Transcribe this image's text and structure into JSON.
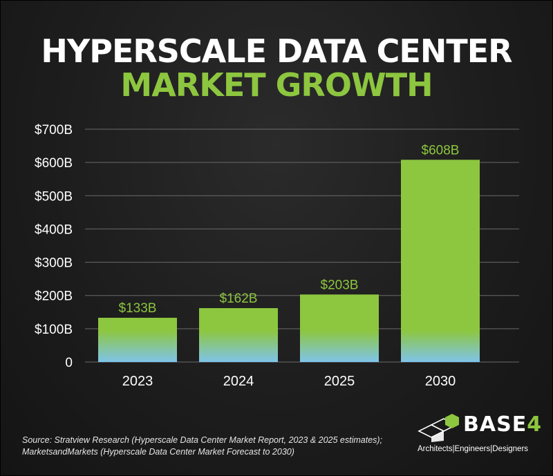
{
  "title": {
    "line1": "HYPERSCALE DATA CENTER",
    "line2": "MARKET GROWTH"
  },
  "colors": {
    "background": "#1d1d1d",
    "title_line1": "#ffffff",
    "title_line2": "#8dc63f",
    "bar": "#8dc63f",
    "bar_base": "#7fc4ea",
    "data_label": "#8dc63f",
    "grid": "#6a6a6a"
  },
  "chart_data": {
    "type": "bar",
    "categories": [
      "2023",
      "2024",
      "2025",
      "2030"
    ],
    "values": [
      133,
      162,
      203,
      608
    ],
    "data_labels": [
      "$133B",
      "$162B",
      "$203B",
      "$608B"
    ],
    "ylim": [
      0,
      700
    ],
    "yticks": [
      0,
      100,
      200,
      300,
      400,
      500,
      600,
      700
    ],
    "ytick_labels": [
      "0",
      "$100B",
      "$200B",
      "$300B",
      "$400B",
      "$500B",
      "$600B",
      "$700B"
    ],
    "grid": true,
    "xlabel": "",
    "ylabel": ""
  },
  "source": {
    "line1": "Source: Stratview Research (Hyperscale Data Center Market Report, 2023 & 2025 estimates);",
    "line2": "MarketsandMarkets (Hyperscale Data Center Market Forecast to 2030)"
  },
  "logo": {
    "brand": "BASE",
    "brand_digit": "4",
    "tagline": "Architects|Engineers|Designers",
    "icon": "cube-logo-icon"
  }
}
